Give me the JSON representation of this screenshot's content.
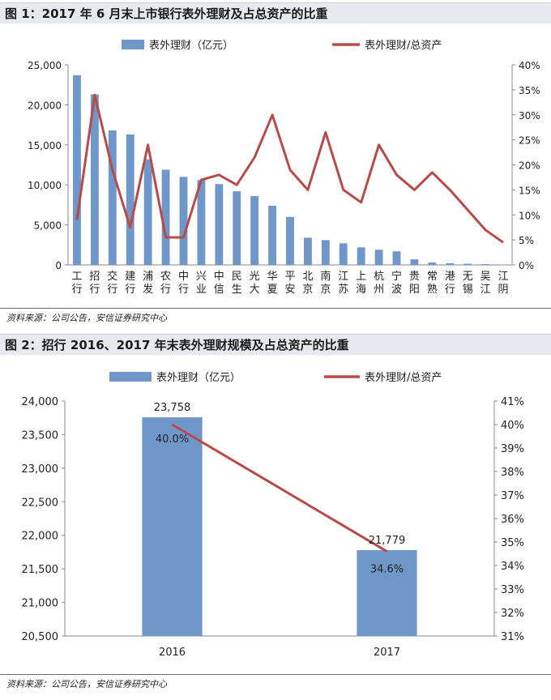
{
  "figure1": {
    "title": "图 1：2017 年 6 月末上市银行表外理财及占总资产的比重",
    "source": "资料来源：公司公告，安信证券研究中心"
  },
  "figure2": {
    "title": "图 2：招行 2016、2017 年末表外理财规模及占总资产的比重",
    "source": "资料来源：公司公告，安信证券研究中心"
  },
  "chart_data": [
    {
      "type": "bar",
      "title": "",
      "categories": [
        "工行",
        "招行",
        "交行",
        "建行",
        "浦发",
        "农行",
        "中行",
        "兴业",
        "中信",
        "民生",
        "光大",
        "华夏",
        "平安",
        "北京",
        "南京",
        "江苏",
        "上海",
        "杭州",
        "宁波",
        "贵阳",
        "常熟",
        "港行",
        "无锡",
        "吴江",
        "江阴"
      ],
      "series": [
        {
          "name": "表外理财（亿元）",
          "axis": "left",
          "kind": "bar",
          "color": "#6f97c9",
          "values": [
            23700,
            21300,
            16800,
            16300,
            13200,
            11900,
            11000,
            10600,
            10100,
            9200,
            8600,
            7400,
            6000,
            3400,
            3100,
            2700,
            2200,
            1900,
            1700,
            700,
            300,
            200,
            150,
            100,
            50
          ]
        },
        {
          "name": "表外理财/总资产",
          "axis": "right",
          "kind": "line",
          "color": "#b94a4a",
          "values": [
            9,
            34,
            19,
            7.5,
            24,
            5.5,
            5.5,
            17,
            18,
            16,
            21.5,
            30,
            19,
            15,
            26.5,
            15,
            12.5,
            24,
            18,
            15,
            18.5,
            15,
            11,
            7,
            4.5
          ]
        }
      ],
      "y_left": {
        "min": 0,
        "max": 25000,
        "ticks": [
          "0",
          "5,000",
          "10,000",
          "15,000",
          "20,000",
          "25,000"
        ]
      },
      "y_right": {
        "min": 0,
        "max": 40,
        "ticks": [
          "0%",
          "5%",
          "10%",
          "15%",
          "20%",
          "25%",
          "30%",
          "35%",
          "40%"
        ]
      },
      "legend_position": "top"
    },
    {
      "type": "bar",
      "title": "",
      "categories": [
        "2016",
        "2017"
      ],
      "series": [
        {
          "name": "表外理财（亿元）",
          "axis": "left",
          "kind": "bar",
          "color": "#6f97c9",
          "values": [
            23758,
            21779
          ],
          "labels": [
            "23,758",
            "21,779"
          ]
        },
        {
          "name": "表外理财/总资产",
          "axis": "right",
          "kind": "line",
          "color": "#b94a4a",
          "values": [
            40.0,
            34.6
          ],
          "labels": [
            "40.0%",
            "34.6%"
          ]
        }
      ],
      "y_left": {
        "min": 20500,
        "max": 24000,
        "ticks": [
          "20,500",
          "21,000",
          "21,500",
          "22,000",
          "22,500",
          "23,000",
          "23,500",
          "24,000"
        ]
      },
      "y_right": {
        "min": 31,
        "max": 41,
        "ticks": [
          "31%",
          "32%",
          "33%",
          "34%",
          "35%",
          "36%",
          "37%",
          "38%",
          "39%",
          "40%",
          "41%"
        ]
      },
      "legend_position": "top"
    }
  ]
}
